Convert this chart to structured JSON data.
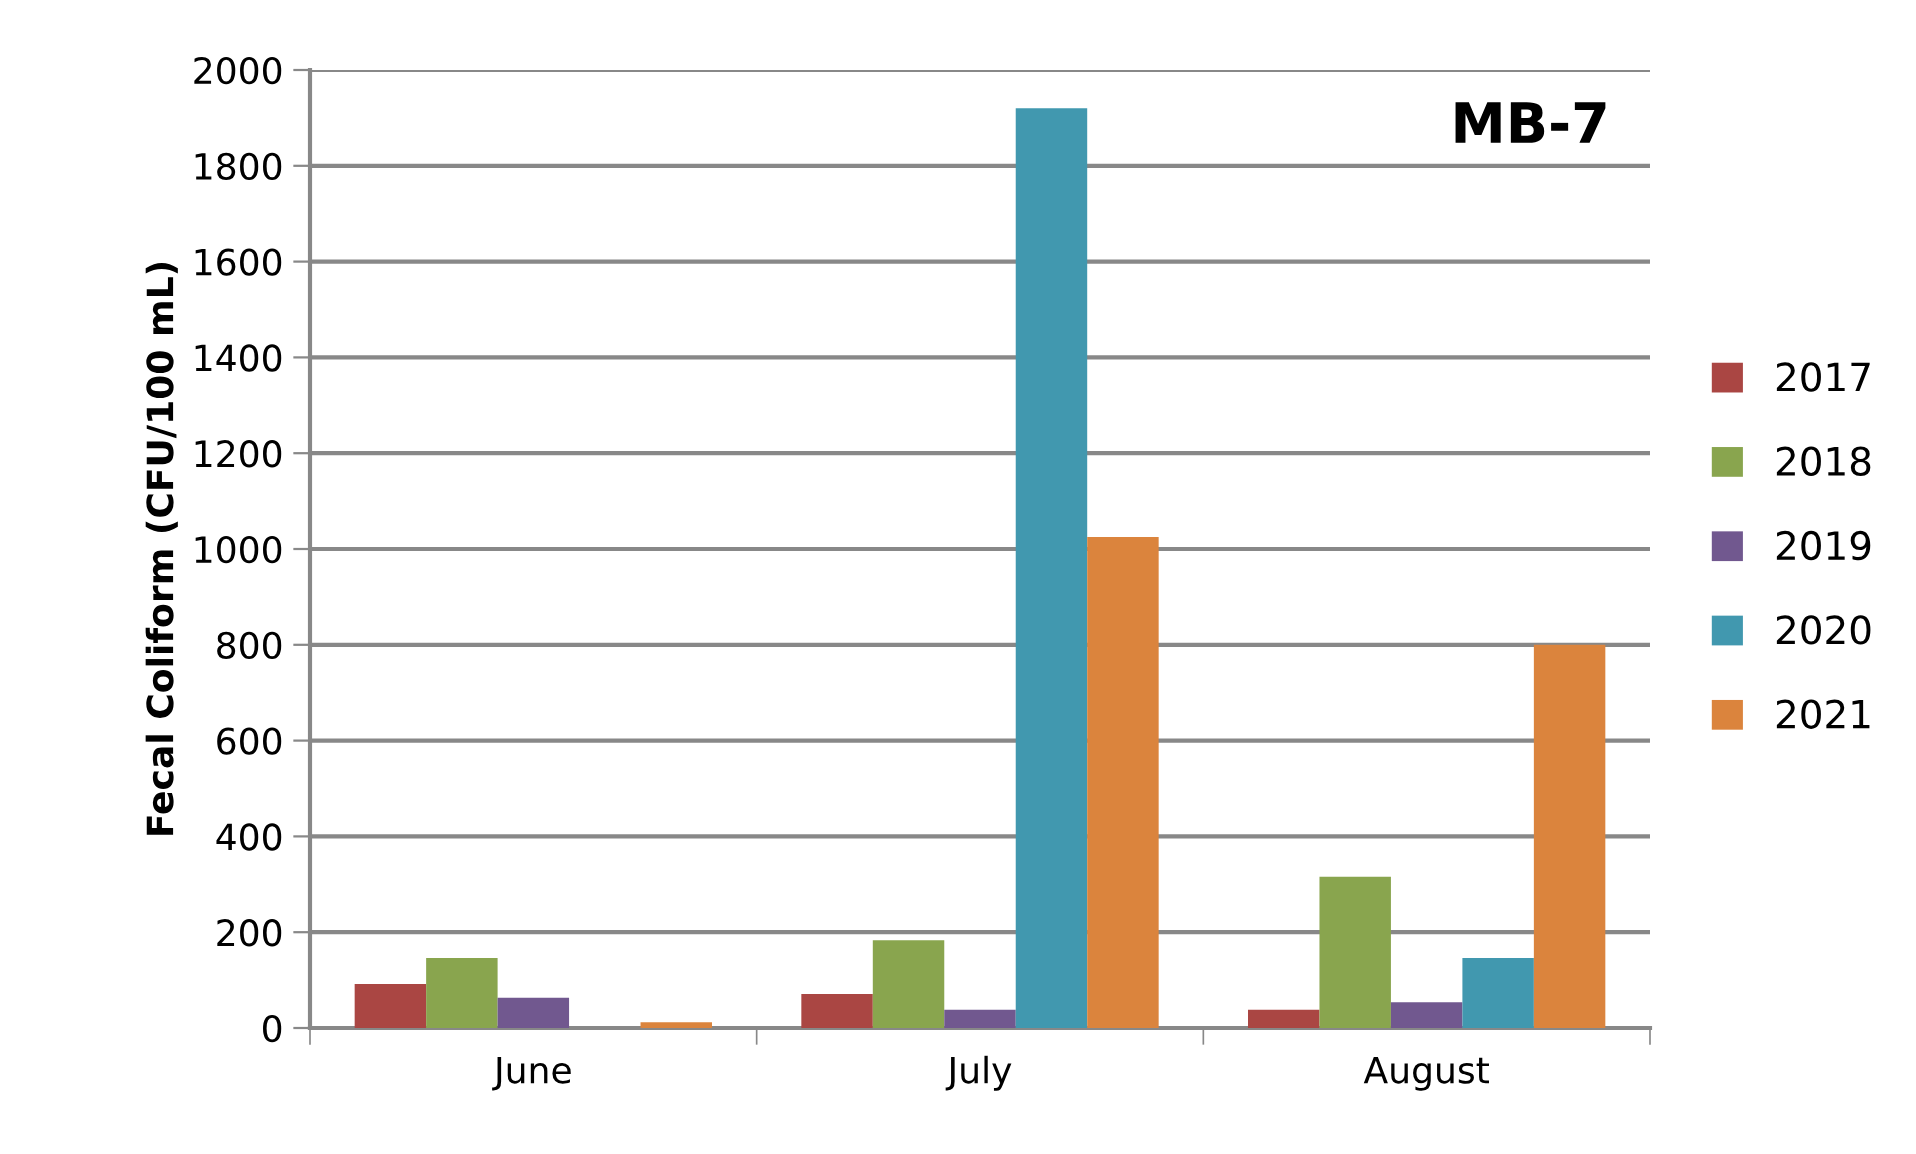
{
  "chart_data": {
    "type": "bar",
    "title": "MB-7",
    "ylabel": "Fecal Coliform (CFU/100 mL)",
    "categories": [
      "June",
      "July",
      "August"
    ],
    "series": [
      {
        "name": "2017",
        "color": "#aa4643",
        "values": [
          92,
          71,
          38
        ]
      },
      {
        "name": "2018",
        "color": "#89a54e",
        "values": [
          146,
          183,
          316
        ]
      },
      {
        "name": "2019",
        "color": "#71588f",
        "values": [
          63,
          38,
          54
        ]
      },
      {
        "name": "2020",
        "color": "#4198af",
        "values": [
          null,
          1920,
          146
        ]
      },
      {
        "name": "2021",
        "color": "#db843d",
        "values": [
          12,
          1025,
          800
        ]
      }
    ],
    "ylim": [
      0,
      2000
    ],
    "yticks": [
      0,
      200,
      400,
      600,
      800,
      1000,
      1200,
      1400,
      1600,
      1800,
      2000
    ],
    "grid": "y",
    "legend": "right"
  }
}
